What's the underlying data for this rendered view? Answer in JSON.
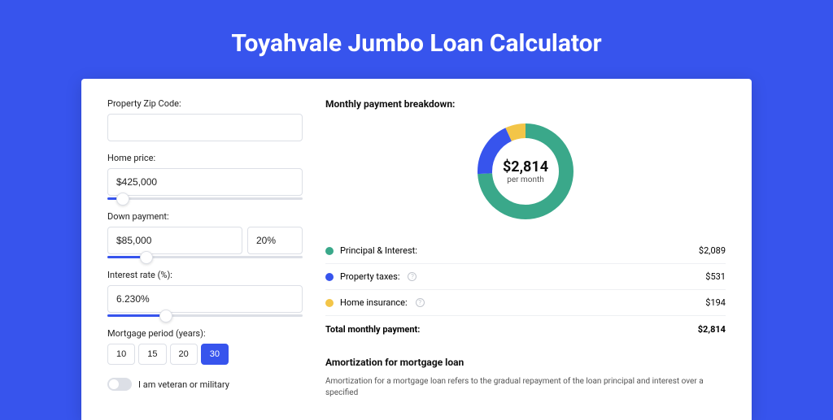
{
  "title": "Toyahvale Jumbo Loan Calculator",
  "colors": {
    "page_bg": "#3754ed",
    "card_bg": "#ffffff",
    "border": "#dcdfe6",
    "accent": "#3754ed",
    "text": "#222222",
    "muted": "#555555"
  },
  "form": {
    "zip": {
      "label": "Property Zip Code:",
      "value": ""
    },
    "home_price": {
      "label": "Home price:",
      "value": "$425,000",
      "slider_pct": 8
    },
    "down_payment": {
      "label": "Down payment:",
      "amount": "$85,000",
      "percent": "20%",
      "slider_pct": 20
    },
    "interest": {
      "label": "Interest rate (%):",
      "value": "6.230%",
      "slider_pct": 30
    },
    "period": {
      "label": "Mortgage period (years):",
      "options": [
        "10",
        "15",
        "20",
        "30"
      ],
      "selected": "30"
    },
    "veteran": {
      "label": "I am veteran or military",
      "checked": false
    }
  },
  "breakdown": {
    "title": "Monthly payment breakdown:",
    "center_amount": "$2,814",
    "center_sub": "per month",
    "donut": {
      "radius": 50,
      "stroke_width": 18,
      "slices": [
        {
          "key": "pi",
          "pct": 74,
          "color": "#3aa88a"
        },
        {
          "key": "tax",
          "pct": 19,
          "color": "#3754ed"
        },
        {
          "key": "ins",
          "pct": 7,
          "color": "#f3c548"
        }
      ]
    },
    "rows": [
      {
        "key": "pi",
        "label": "Principal & Interest:",
        "value": "$2,089",
        "color": "#3aa88a",
        "info": false
      },
      {
        "key": "tax",
        "label": "Property taxes:",
        "value": "$531",
        "color": "#3754ed",
        "info": true
      },
      {
        "key": "ins",
        "label": "Home insurance:",
        "value": "$194",
        "color": "#f3c548",
        "info": true
      }
    ],
    "total": {
      "label": "Total monthly payment:",
      "value": "$2,814"
    }
  },
  "amortization": {
    "title": "Amortization for mortgage loan",
    "text": "Amortization for a mortgage loan refers to the gradual repayment of the loan principal and interest over a specified"
  }
}
